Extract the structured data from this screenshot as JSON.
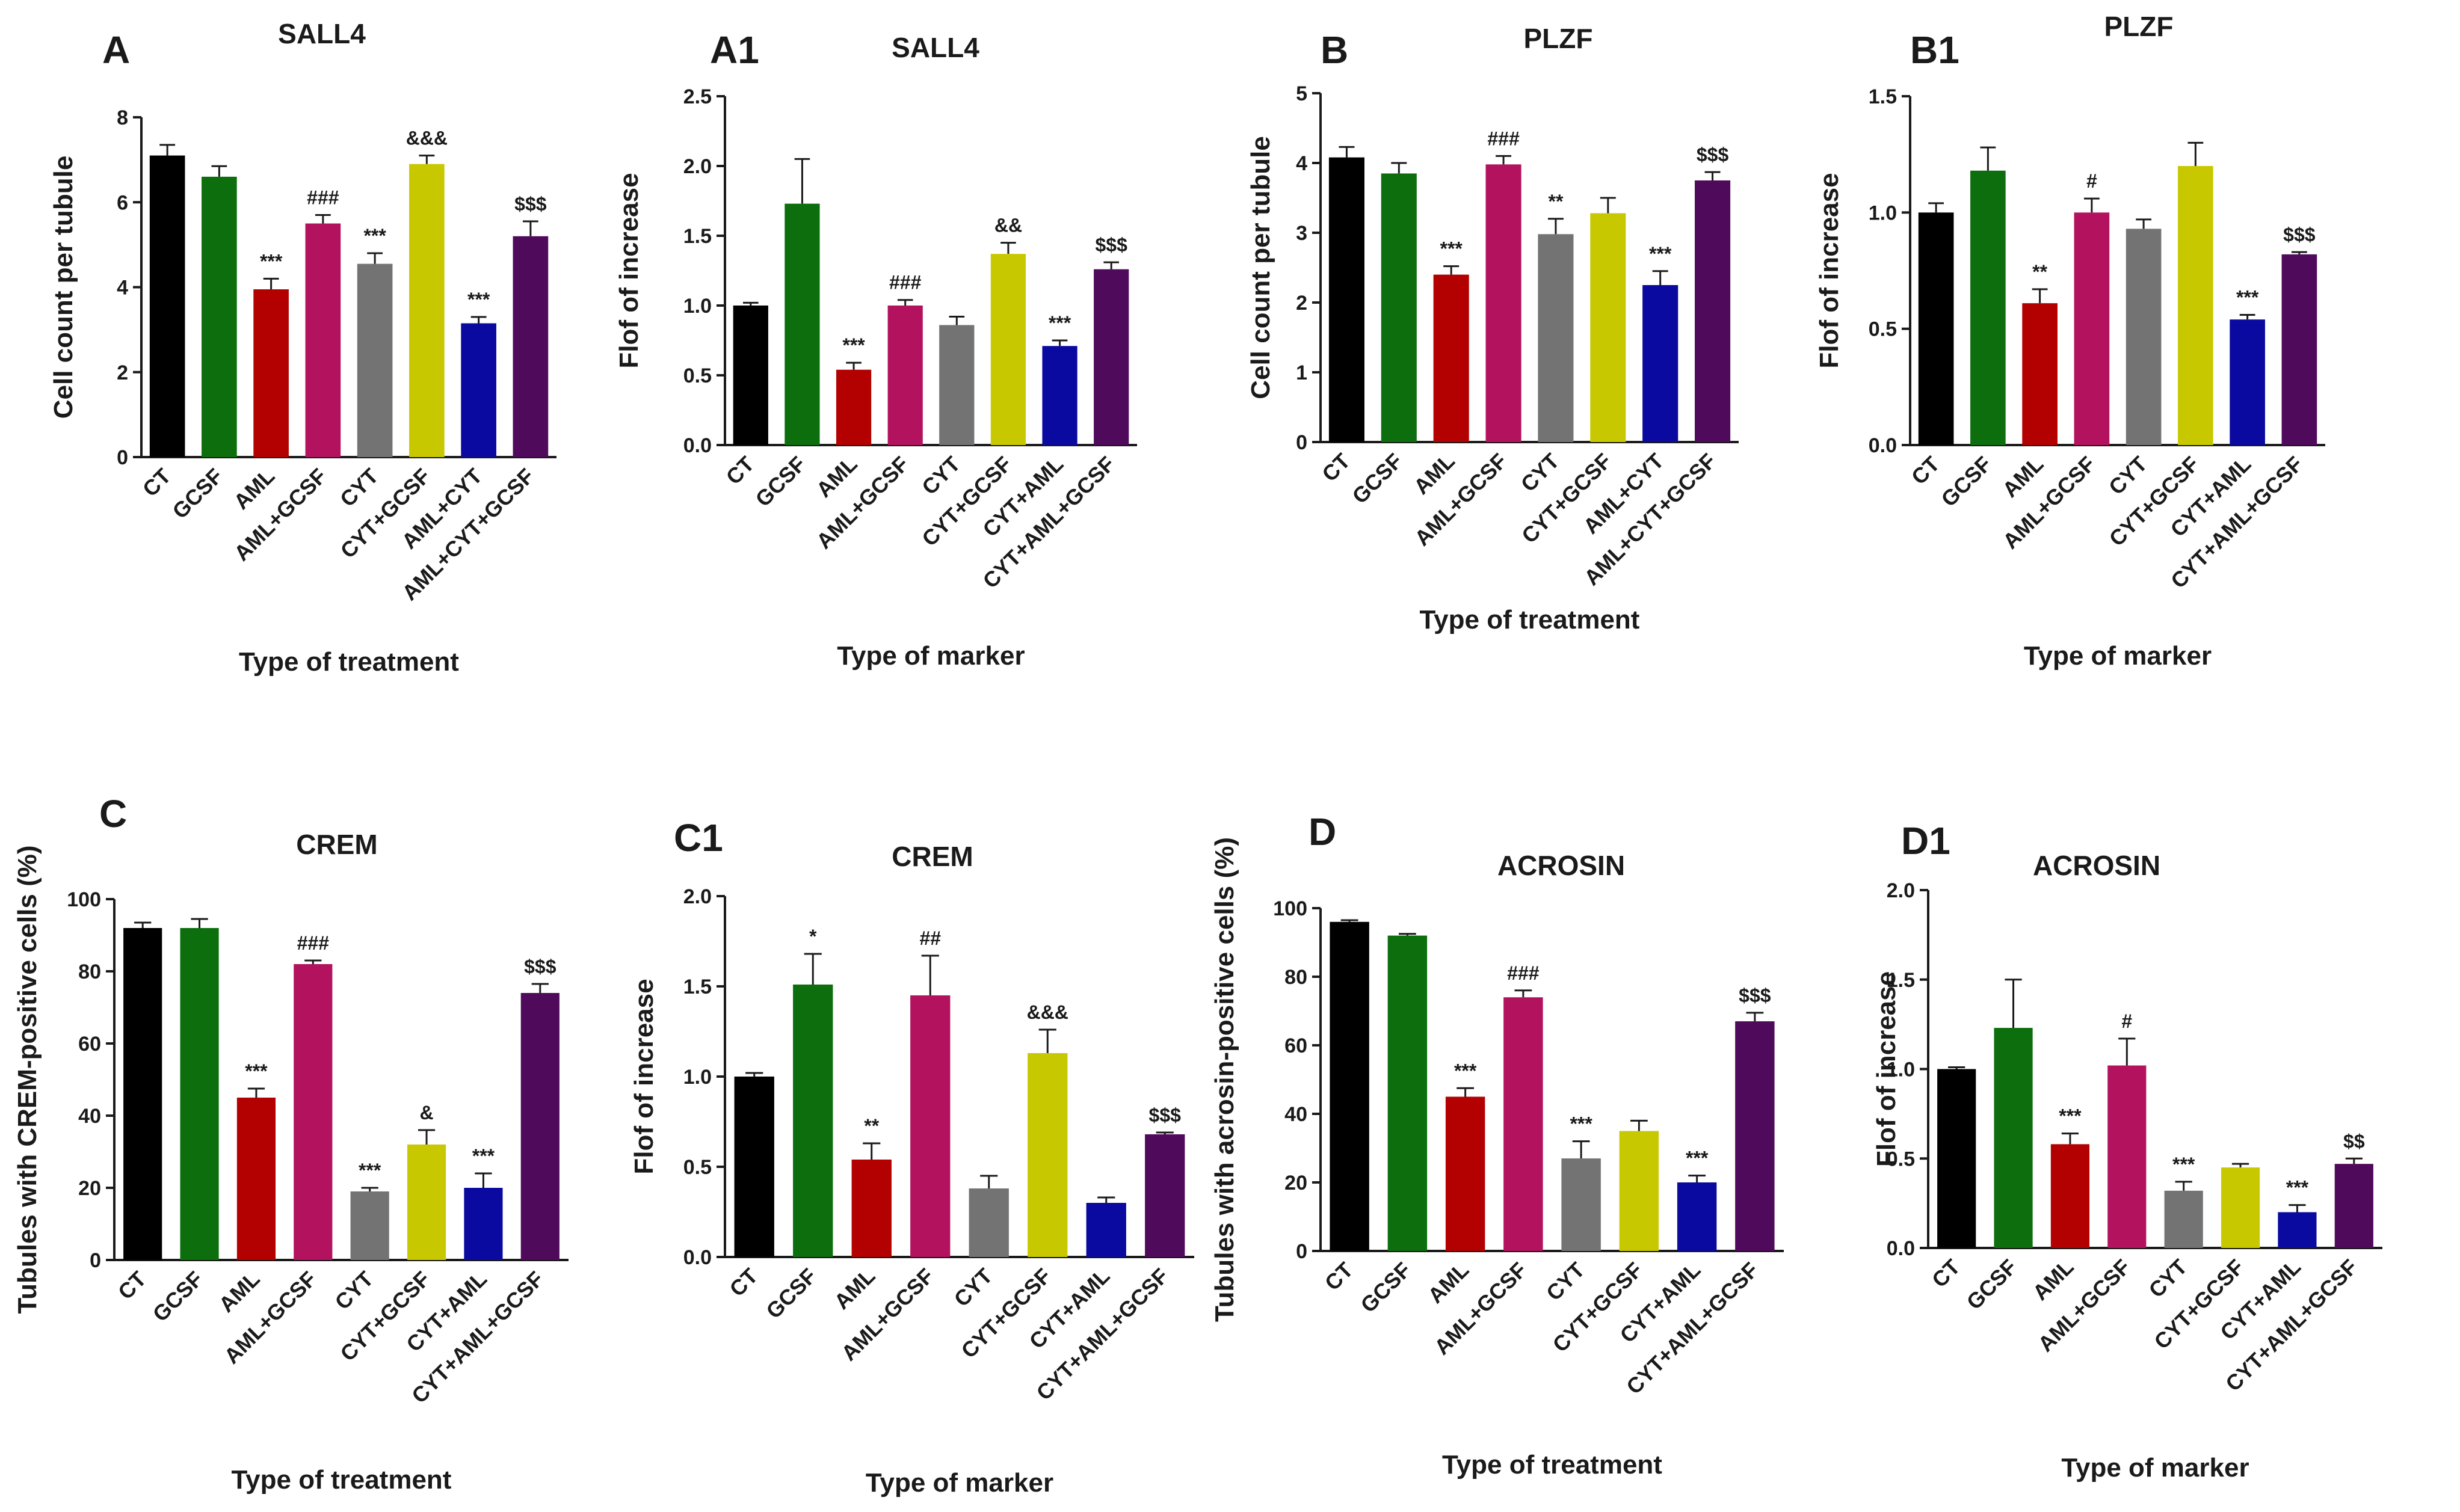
{
  "figure": {
    "description_free": true
  },
  "colors": [
    "#000000",
    "#0d6e0d",
    "#b30000",
    "#b3125e",
    "#737373",
    "#c8c800",
    "#0a0aa0",
    "#500a5c"
  ],
  "chart_data": [
    {
      "type": "bar",
      "panel": "A",
      "title": "SALL4",
      "ylabel": "Cell count per tubule",
      "xlabel": "Type of treatment",
      "ylim": [
        0,
        8
      ],
      "yticks": [
        "0",
        "2",
        "4",
        "6",
        "8"
      ],
      "ytick_values": [
        0,
        2,
        4,
        6,
        8
      ],
      "categories": [
        "CT",
        "GCSF",
        "AML",
        "AML+GCSF",
        "CYT",
        "CYT+GCSF",
        "AML+CYT",
        "AML+CYT+GCSF"
      ],
      "values": [
        7.1,
        6.6,
        3.95,
        5.5,
        4.55,
        6.9,
        3.15,
        5.2
      ],
      "errors": [
        0.25,
        0.25,
        0.25,
        0.2,
        0.25,
        0.2,
        0.15,
        0.35
      ],
      "annotations": [
        "",
        "",
        "***",
        "###",
        "***",
        "&&&",
        "***",
        "$$$"
      ]
    },
    {
      "type": "bar",
      "panel": "A1",
      "title": "SALL4",
      "ylabel": "Flof of increase",
      "xlabel": "Type of marker",
      "ylim": [
        0,
        2.5
      ],
      "yticks": [
        "0.0",
        "0.5",
        "1.0",
        "1.5",
        "2.0",
        "2.5"
      ],
      "ytick_values": [
        0,
        0.5,
        1.0,
        1.5,
        2.0,
        2.5
      ],
      "categories": [
        "CT",
        "GCSF",
        "AML",
        "AML+GCSF",
        "CYT",
        "CYT+GCSF",
        "CYT+AML",
        "CYT+AML+GCSF"
      ],
      "values": [
        1.0,
        1.73,
        0.54,
        1.0,
        0.86,
        1.37,
        0.71,
        1.26
      ],
      "errors": [
        0.02,
        0.32,
        0.05,
        0.04,
        0.06,
        0.08,
        0.04,
        0.05
      ],
      "annotations": [
        "",
        "",
        "***",
        "###",
        "",
        "&&",
        "***",
        "$$$"
      ]
    },
    {
      "type": "bar",
      "panel": "B",
      "title": "PLZF",
      "ylabel": "Cell count per tubule",
      "xlabel": "Type of treatment",
      "ylim": [
        0,
        5
      ],
      "yticks": [
        "0",
        "1",
        "2",
        "3",
        "4",
        "5"
      ],
      "ytick_values": [
        0,
        1,
        2,
        3,
        4,
        5
      ],
      "categories": [
        "CT",
        "GCSF",
        "AML",
        "AML+GCSF",
        "CYT",
        "CYT+GCSF",
        "AML+CYT",
        "AML+CYT+GCSF"
      ],
      "values": [
        4.08,
        3.85,
        2.4,
        3.98,
        2.98,
        3.28,
        2.25,
        3.75
      ],
      "errors": [
        0.15,
        0.15,
        0.12,
        0.12,
        0.22,
        0.22,
        0.2,
        0.12
      ],
      "annotations": [
        "",
        "",
        "***",
        "###",
        "**",
        "",
        "***",
        "$$$"
      ]
    },
    {
      "type": "bar",
      "panel": "B1",
      "title": "PLZF",
      "ylabel": "Flof of increase",
      "xlabel": "Type of marker",
      "ylim": [
        0,
        1.5
      ],
      "yticks": [
        "0.0",
        "0.5",
        "1.0",
        "1.5"
      ],
      "ytick_values": [
        0,
        0.5,
        1.0,
        1.5
      ],
      "categories": [
        "CT",
        "GCSF",
        "AML",
        "AML+GCSF",
        "CYT",
        "CYT+GCSF",
        "CYT+AML",
        "CYT+AML+GCSF"
      ],
      "values": [
        1.0,
        1.18,
        0.61,
        1.0,
        0.93,
        1.2,
        0.54,
        0.82
      ],
      "errors": [
        0.04,
        0.1,
        0.06,
        0.06,
        0.04,
        0.1,
        0.02,
        0.01
      ],
      "annotations": [
        "",
        "",
        "**",
        "#",
        "",
        "",
        "***",
        "$$$"
      ]
    },
    {
      "type": "bar",
      "panel": "C",
      "title": "CREM",
      "ylabel": "Tubules with CREM-positive cells (%)",
      "xlabel": "Type of treatment",
      "ylim": [
        0,
        100
      ],
      "yticks": [
        "0",
        "20",
        "40",
        "60",
        "80",
        "100"
      ],
      "ytick_values": [
        0,
        20,
        40,
        60,
        80,
        100
      ],
      "categories": [
        "CT",
        "GCSF",
        "AML",
        "AML+GCSF",
        "CYT",
        "CYT+GCSF",
        "CYT+AML",
        "CYT+AML+GCSF"
      ],
      "values": [
        92,
        92,
        45,
        82,
        19,
        32,
        20,
        74
      ],
      "errors": [
        1.5,
        2.5,
        2.5,
        1,
        1,
        4,
        4,
        2.5
      ],
      "annotations": [
        "",
        "",
        "***",
        "###",
        "***",
        "&",
        "***",
        "$$$"
      ]
    },
    {
      "type": "bar",
      "panel": "C1",
      "title": "CREM",
      "ylabel": "Flof of increase",
      "xlabel": "Type of marker",
      "ylim": [
        0,
        2.0
      ],
      "yticks": [
        "0.0",
        "0.5",
        "1.0",
        "1.5",
        "2.0"
      ],
      "ytick_values": [
        0,
        0.5,
        1.0,
        1.5,
        2.0
      ],
      "categories": [
        "CT",
        "GCSF",
        "AML",
        "AML+GCSF",
        "CYT",
        "CYT+GCSF",
        "CYT+AML",
        "CYT+AML+GCSF"
      ],
      "values": [
        1.0,
        1.51,
        0.54,
        1.45,
        0.38,
        1.13,
        0.3,
        0.68
      ],
      "errors": [
        0.02,
        0.17,
        0.09,
        0.22,
        0.07,
        0.13,
        0.03,
        0.01
      ],
      "annotations": [
        "",
        "*",
        "**",
        "##",
        "",
        "&&&",
        "",
        "$$$"
      ]
    },
    {
      "type": "bar",
      "panel": "D",
      "title": "ACROSIN",
      "ylabel": "Tubules with acrosin-positive cells (%)",
      "xlabel": "Type of treatment",
      "ylim": [
        0,
        100
      ],
      "yticks": [
        "0",
        "20",
        "40",
        "60",
        "80",
        "100"
      ],
      "ytick_values": [
        0,
        20,
        40,
        60,
        80,
        100
      ],
      "categories": [
        "CT",
        "GCSF",
        "AML",
        "AML+GCSF",
        "CYT",
        "CYT+GCSF",
        "CYT+AML",
        "CYT+AML+GCSF"
      ],
      "values": [
        96,
        92,
        45,
        74,
        27,
        35,
        20,
        67
      ],
      "errors": [
        0.5,
        0.5,
        2.5,
        2,
        5,
        3,
        2,
        2.5
      ],
      "annotations": [
        "",
        "",
        "***",
        "###",
        "***",
        "",
        "***",
        "$$$"
      ]
    },
    {
      "type": "bar",
      "panel": "D1",
      "title": "ACROSIN",
      "ylabel": "Flof of increase",
      "xlabel": "Type of marker",
      "ylim": [
        0,
        2.0
      ],
      "yticks": [
        "0.0",
        "0.5",
        "1.0",
        "1.5",
        "2.0"
      ],
      "ytick_values": [
        0,
        0.5,
        1.0,
        1.5,
        2.0
      ],
      "categories": [
        "CT",
        "GCSF",
        "AML",
        "AML+GCSF",
        "CYT",
        "CYT+GCSF",
        "CYT+AML",
        "CYT+AML+GCSF"
      ],
      "values": [
        1.0,
        1.23,
        0.58,
        1.02,
        0.32,
        0.45,
        0.2,
        0.47
      ],
      "errors": [
        0.01,
        0.27,
        0.06,
        0.15,
        0.05,
        0.02,
        0.04,
        0.03
      ],
      "annotations": [
        "",
        "",
        "***",
        "#",
        "***",
        "",
        "***",
        "$$"
      ]
    }
  ]
}
